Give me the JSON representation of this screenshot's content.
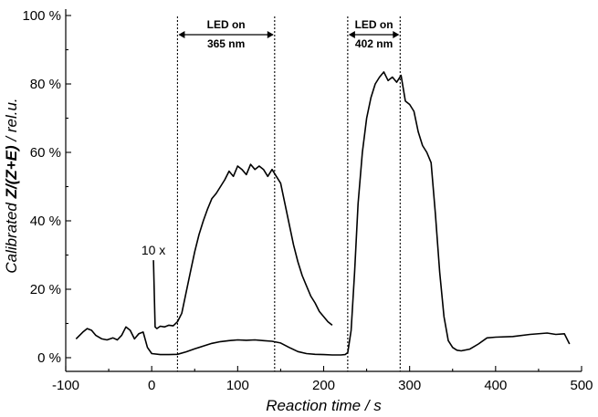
{
  "chart_data": {
    "type": "line",
    "title": "",
    "xlabel": "Reaction time / s",
    "ylabel_prefix": "Calibrated ",
    "ylabel_bold": "Z/(Z+E)",
    "ylabel_suffix": " / rel.u.",
    "xlim": [
      -100,
      500
    ],
    "ylim": [
      0,
      100
    ],
    "xticks": [
      -100,
      0,
      100,
      200,
      300,
      400,
      500
    ],
    "xtick_labels": [
      "-100",
      "0",
      "100",
      "200",
      "300",
      "400",
      "500"
    ],
    "yticks": [
      0,
      20,
      40,
      60,
      80,
      100
    ],
    "ytick_labels": [
      "0 %",
      "20 %",
      "40 %",
      "60 %",
      "80 %",
      "100 %"
    ],
    "grid": false,
    "series": [
      {
        "x": [
          -88,
          -80,
          -75,
          -70,
          -65,
          -58,
          -52,
          -45,
          -40,
          -35,
          -30,
          -25,
          -20,
          -15,
          -10,
          -5,
          0,
          10,
          20,
          30,
          40,
          50,
          60,
          70,
          80,
          90,
          100,
          110,
          120,
          130,
          140,
          150,
          160,
          170,
          180,
          190,
          200,
          210,
          220,
          225,
          228,
          232,
          236,
          240,
          245,
          250,
          255,
          260,
          265,
          270,
          275,
          280,
          285,
          290,
          295,
          300,
          305,
          310,
          315,
          320,
          325,
          330,
          335,
          340,
          345,
          350,
          355,
          360,
          370,
          380,
          390,
          400,
          420,
          440,
          460,
          470,
          480,
          486
        ],
        "y": [
          5.5,
          7.5,
          8.5,
          8.0,
          6.5,
          5.5,
          5.2,
          5.8,
          5.2,
          6.5,
          9.0,
          8.0,
          5.5,
          7.0,
          7.5,
          3.0,
          1.2,
          0.9,
          0.9,
          1.0,
          1.7,
          2.6,
          3.4,
          4.2,
          4.7,
          5.0,
          5.2,
          5.1,
          5.2,
          5.0,
          4.8,
          4.3,
          3.0,
          1.8,
          1.2,
          1.0,
          0.9,
          0.8,
          0.8,
          0.9,
          1.5,
          8.0,
          25.0,
          45.0,
          60.0,
          70.0,
          76.0,
          80.0,
          82.0,
          83.5,
          81.0,
          82.0,
          80.5,
          82.5,
          75.0,
          74.0,
          72.0,
          66.0,
          62.0,
          60.0,
          57.0,
          42.0,
          25.0,
          12.0,
          5.0,
          3.0,
          2.2,
          2.0,
          2.5,
          4.0,
          5.8,
          6.0,
          6.2,
          6.8,
          7.2,
          6.8,
          7.0,
          4.0
        ]
      },
      {
        "x": [
          2,
          4,
          6,
          10,
          15,
          20,
          25,
          30,
          35,
          40,
          45,
          50,
          55,
          60,
          65,
          70,
          75,
          80,
          85,
          90,
          95,
          100,
          105,
          110,
          115,
          120,
          125,
          130,
          135,
          140,
          145,
          150,
          155,
          160,
          165,
          170,
          175,
          180,
          185,
          190,
          195,
          200,
          205,
          210
        ],
        "y": [
          28.5,
          9.0,
          8.5,
          9.2,
          9.0,
          9.5,
          9.3,
          10.5,
          13.0,
          19.0,
          25.0,
          31.0,
          36.0,
          40.0,
          43.5,
          46.5,
          48.0,
          50.0,
          52.0,
          54.5,
          53.0,
          56.0,
          55.0,
          53.5,
          56.5,
          55.0,
          56.0,
          55.0,
          53.0,
          55.0,
          53.0,
          51.0,
          45.0,
          39.0,
          33.0,
          28.0,
          24.0,
          21.0,
          18.0,
          16.0,
          13.5,
          12.0,
          10.5,
          9.5
        ]
      }
    ],
    "annotations": {
      "led1_label": "LED on",
      "led1_wavelength": "365 nm",
      "led1_range": [
        30,
        143
      ],
      "led2_label": "LED on",
      "led2_wavelength": "402 nm",
      "led2_range": [
        228,
        289
      ],
      "scale_label": "10 x"
    }
  }
}
